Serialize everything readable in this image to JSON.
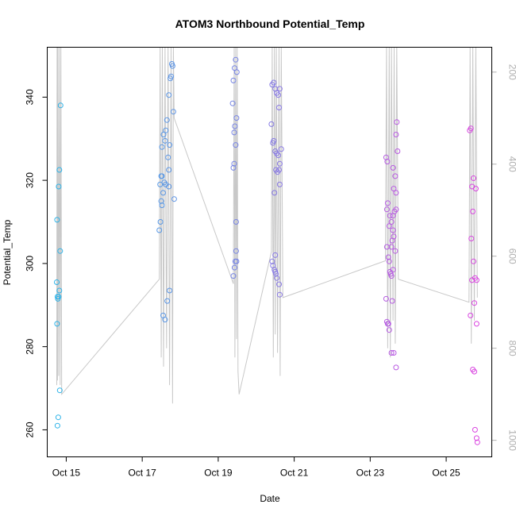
{
  "chart_data": {
    "type": "scatter",
    "title": "ATOM3 Northbound Potential_Temp",
    "xlabel": "Date",
    "ylabel": "Potential_Temp",
    "xlim": [
      14.5,
      26.2
    ],
    "ylim": [
      253.5,
      352
    ],
    "y2lim": [
      1036,
      146
    ],
    "x_ticks": [
      {
        "value": 15,
        "label": "Oct 15"
      },
      {
        "value": 17,
        "label": "Oct 17"
      },
      {
        "value": 19,
        "label": "Oct 19"
      },
      {
        "value": 21,
        "label": "Oct 21"
      },
      {
        "value": 23,
        "label": "Oct 23"
      },
      {
        "value": 25,
        "label": "Oct 25"
      }
    ],
    "y_ticks": [
      260,
      280,
      300,
      320,
      340
    ],
    "y2_ticks": [
      200,
      400,
      600,
      800,
      1000
    ],
    "color_start": "#29b6e8",
    "color_end": "#e040e0",
    "path_color": "#c8c8c8",
    "axis_color": "#000000",
    "y2_color": "#b0b0b0",
    "path": [
      {
        "x": 14.75,
        "p": 880
      },
      {
        "x": 14.76,
        "p": 146
      },
      {
        "x": 14.77,
        "p": 870
      },
      {
        "x": 14.78,
        "p": 146
      },
      {
        "x": 14.8,
        "p": 860
      },
      {
        "x": 14.82,
        "p": 146
      },
      {
        "x": 14.84,
        "p": 880
      },
      {
        "x": 14.86,
        "p": 146
      },
      {
        "x": 14.88,
        "p": 900
      },
      {
        "x": 17.45,
        "p": 650
      },
      {
        "x": 17.47,
        "p": 146
      },
      {
        "x": 17.5,
        "p": 820
      },
      {
        "x": 17.53,
        "p": 146
      },
      {
        "x": 17.56,
        "p": 840
      },
      {
        "x": 17.6,
        "p": 146
      },
      {
        "x": 17.64,
        "p": 800
      },
      {
        "x": 17.68,
        "p": 146
      },
      {
        "x": 17.72,
        "p": 880
      },
      {
        "x": 17.76,
        "p": 146
      },
      {
        "x": 17.8,
        "p": 920
      },
      {
        "x": 17.82,
        "p": 146
      },
      {
        "x": 17.84,
        "p": 300
      },
      {
        "x": 19.4,
        "p": 660
      },
      {
        "x": 19.42,
        "p": 146
      },
      {
        "x": 19.44,
        "p": 820
      },
      {
        "x": 19.46,
        "p": 146
      },
      {
        "x": 19.48,
        "p": 780
      },
      {
        "x": 19.5,
        "p": 146
      },
      {
        "x": 19.52,
        "p": 850
      },
      {
        "x": 19.55,
        "p": 900
      },
      {
        "x": 20.4,
        "p": 590
      },
      {
        "x": 20.42,
        "p": 146
      },
      {
        "x": 20.45,
        "p": 820
      },
      {
        "x": 20.48,
        "p": 146
      },
      {
        "x": 20.5,
        "p": 770
      },
      {
        "x": 20.53,
        "p": 146
      },
      {
        "x": 20.56,
        "p": 810
      },
      {
        "x": 20.6,
        "p": 146
      },
      {
        "x": 20.63,
        "p": 860
      },
      {
        "x": 20.66,
        "p": 146
      },
      {
        "x": 20.7,
        "p": 690
      },
      {
        "x": 23.4,
        "p": 610
      },
      {
        "x": 23.43,
        "p": 146
      },
      {
        "x": 23.46,
        "p": 800
      },
      {
        "x": 23.5,
        "p": 146
      },
      {
        "x": 23.53,
        "p": 820
      },
      {
        "x": 23.56,
        "p": 146
      },
      {
        "x": 23.6,
        "p": 740
      },
      {
        "x": 23.63,
        "p": 146
      },
      {
        "x": 23.66,
        "p": 790
      },
      {
        "x": 23.7,
        "p": 146
      },
      {
        "x": 23.74,
        "p": 650
      },
      {
        "x": 25.6,
        "p": 700
      },
      {
        "x": 25.63,
        "p": 146
      },
      {
        "x": 25.66,
        "p": 790
      },
      {
        "x": 25.7,
        "p": 146
      },
      {
        "x": 25.74,
        "p": 740
      },
      {
        "x": 25.78,
        "p": 146
      },
      {
        "x": 25.82,
        "p": 690
      }
    ],
    "points": [
      {
        "x": 14.75,
        "y": 295.5
      },
      {
        "x": 14.77,
        "y": 292
      },
      {
        "x": 14.78,
        "y": 291.5
      },
      {
        "x": 14.8,
        "y": 292
      },
      {
        "x": 14.82,
        "y": 293.5
      },
      {
        "x": 14.85,
        "y": 338
      },
      {
        "x": 14.82,
        "y": 322.5
      },
      {
        "x": 14.8,
        "y": 318.5
      },
      {
        "x": 14.76,
        "y": 310.5
      },
      {
        "x": 14.84,
        "y": 303
      },
      {
        "x": 14.76,
        "y": 285.5
      },
      {
        "x": 14.83,
        "y": 269.5
      },
      {
        "x": 14.79,
        "y": 263
      },
      {
        "x": 14.77,
        "y": 261
      },
      {
        "x": 17.45,
        "y": 308
      },
      {
        "x": 17.48,
        "y": 310
      },
      {
        "x": 17.5,
        "y": 315
      },
      {
        "x": 17.52,
        "y": 314
      },
      {
        "x": 17.55,
        "y": 317
      },
      {
        "x": 17.47,
        "y": 319
      },
      {
        "x": 17.5,
        "y": 321
      },
      {
        "x": 17.52,
        "y": 321
      },
      {
        "x": 17.58,
        "y": 319.5
      },
      {
        "x": 17.62,
        "y": 319
      },
      {
        "x": 17.7,
        "y": 318.5
      },
      {
        "x": 17.52,
        "y": 328
      },
      {
        "x": 17.56,
        "y": 331
      },
      {
        "x": 17.62,
        "y": 332
      },
      {
        "x": 17.65,
        "y": 334.5
      },
      {
        "x": 17.6,
        "y": 329.5
      },
      {
        "x": 17.68,
        "y": 325.5
      },
      {
        "x": 17.7,
        "y": 322.5
      },
      {
        "x": 17.72,
        "y": 328.5
      },
      {
        "x": 17.7,
        "y": 340.5
      },
      {
        "x": 17.74,
        "y": 344.5
      },
      {
        "x": 17.76,
        "y": 345
      },
      {
        "x": 17.78,
        "y": 348
      },
      {
        "x": 17.8,
        "y": 347.5
      },
      {
        "x": 17.82,
        "y": 336.5
      },
      {
        "x": 17.84,
        "y": 315.5
      },
      {
        "x": 17.72,
        "y": 293.5
      },
      {
        "x": 17.66,
        "y": 291
      },
      {
        "x": 17.55,
        "y": 287.5
      },
      {
        "x": 17.6,
        "y": 286.5
      },
      {
        "x": 19.38,
        "y": 338.5
      },
      {
        "x": 19.4,
        "y": 344
      },
      {
        "x": 19.43,
        "y": 347
      },
      {
        "x": 19.46,
        "y": 349
      },
      {
        "x": 19.49,
        "y": 346
      },
      {
        "x": 19.44,
        "y": 333
      },
      {
        "x": 19.48,
        "y": 335
      },
      {
        "x": 19.42,
        "y": 331.5
      },
      {
        "x": 19.46,
        "y": 328.5
      },
      {
        "x": 19.42,
        "y": 324
      },
      {
        "x": 19.4,
        "y": 323
      },
      {
        "x": 19.47,
        "y": 310
      },
      {
        "x": 19.47,
        "y": 303
      },
      {
        "x": 19.45,
        "y": 300.5
      },
      {
        "x": 19.48,
        "y": 300.5
      },
      {
        "x": 19.43,
        "y": 299
      },
      {
        "x": 19.4,
        "y": 297
      },
      {
        "x": 20.4,
        "y": 333.5
      },
      {
        "x": 20.42,
        "y": 343
      },
      {
        "x": 20.46,
        "y": 343.5
      },
      {
        "x": 20.5,
        "y": 342
      },
      {
        "x": 20.54,
        "y": 341
      },
      {
        "x": 20.58,
        "y": 340.5
      },
      {
        "x": 20.62,
        "y": 342
      },
      {
        "x": 20.6,
        "y": 337.5
      },
      {
        "x": 20.44,
        "y": 329
      },
      {
        "x": 20.46,
        "y": 329.5
      },
      {
        "x": 20.5,
        "y": 327
      },
      {
        "x": 20.54,
        "y": 326.5
      },
      {
        "x": 20.58,
        "y": 326
      },
      {
        "x": 20.62,
        "y": 324
      },
      {
        "x": 20.66,
        "y": 327.5
      },
      {
        "x": 20.52,
        "y": 322.5
      },
      {
        "x": 20.56,
        "y": 322
      },
      {
        "x": 20.6,
        "y": 322.5
      },
      {
        "x": 20.62,
        "y": 319
      },
      {
        "x": 20.48,
        "y": 317
      },
      {
        "x": 20.42,
        "y": 300.5
      },
      {
        "x": 20.44,
        "y": 299.5
      },
      {
        "x": 20.48,
        "y": 298.5
      },
      {
        "x": 20.5,
        "y": 298
      },
      {
        "x": 20.52,
        "y": 297.5
      },
      {
        "x": 20.5,
        "y": 302
      },
      {
        "x": 20.54,
        "y": 296.5
      },
      {
        "x": 20.6,
        "y": 295
      },
      {
        "x": 20.62,
        "y": 292.5
      },
      {
        "x": 23.42,
        "y": 325.5
      },
      {
        "x": 23.45,
        "y": 324.5
      },
      {
        "x": 23.6,
        "y": 323
      },
      {
        "x": 23.7,
        "y": 334
      },
      {
        "x": 23.72,
        "y": 327
      },
      {
        "x": 23.66,
        "y": 321
      },
      {
        "x": 23.62,
        "y": 318
      },
      {
        "x": 23.68,
        "y": 317
      },
      {
        "x": 23.46,
        "y": 314.5
      },
      {
        "x": 23.44,
        "y": 313
      },
      {
        "x": 23.52,
        "y": 311.5
      },
      {
        "x": 23.6,
        "y": 311.5
      },
      {
        "x": 23.64,
        "y": 312.5
      },
      {
        "x": 23.68,
        "y": 313
      },
      {
        "x": 23.5,
        "y": 309
      },
      {
        "x": 23.56,
        "y": 310
      },
      {
        "x": 23.6,
        "y": 308
      },
      {
        "x": 23.58,
        "y": 305.5
      },
      {
        "x": 23.62,
        "y": 306.5
      },
      {
        "x": 23.56,
        "y": 304
      },
      {
        "x": 23.44,
        "y": 304
      },
      {
        "x": 23.66,
        "y": 303
      },
      {
        "x": 23.48,
        "y": 301.5
      },
      {
        "x": 23.5,
        "y": 300.5
      },
      {
        "x": 23.52,
        "y": 298
      },
      {
        "x": 23.54,
        "y": 297.5
      },
      {
        "x": 23.56,
        "y": 297
      },
      {
        "x": 23.6,
        "y": 298.5
      },
      {
        "x": 23.68,
        "y": 331
      },
      {
        "x": 23.42,
        "y": 291.5
      },
      {
        "x": 23.58,
        "y": 291
      },
      {
        "x": 23.44,
        "y": 286
      },
      {
        "x": 23.46,
        "y": 285.5
      },
      {
        "x": 23.48,
        "y": 285.5
      },
      {
        "x": 23.5,
        "y": 284
      },
      {
        "x": 23.56,
        "y": 278.5
      },
      {
        "x": 23.62,
        "y": 278.5
      },
      {
        "x": 23.68,
        "y": 275
      },
      {
        "x": 25.62,
        "y": 332
      },
      {
        "x": 25.65,
        "y": 332.5
      },
      {
        "x": 25.68,
        "y": 318.5
      },
      {
        "x": 25.72,
        "y": 320.5
      },
      {
        "x": 25.78,
        "y": 318
      },
      {
        "x": 25.7,
        "y": 312.5
      },
      {
        "x": 25.66,
        "y": 306
      },
      {
        "x": 25.72,
        "y": 300.5
      },
      {
        "x": 25.68,
        "y": 296
      },
      {
        "x": 25.76,
        "y": 296.5
      },
      {
        "x": 25.8,
        "y": 296
      },
      {
        "x": 25.74,
        "y": 290.5
      },
      {
        "x": 25.64,
        "y": 287.5
      },
      {
        "x": 25.8,
        "y": 285.5
      },
      {
        "x": 25.7,
        "y": 274.5
      },
      {
        "x": 25.74,
        "y": 274
      },
      {
        "x": 25.76,
        "y": 260
      },
      {
        "x": 25.8,
        "y": 258
      },
      {
        "x": 25.82,
        "y": 257
      }
    ]
  }
}
